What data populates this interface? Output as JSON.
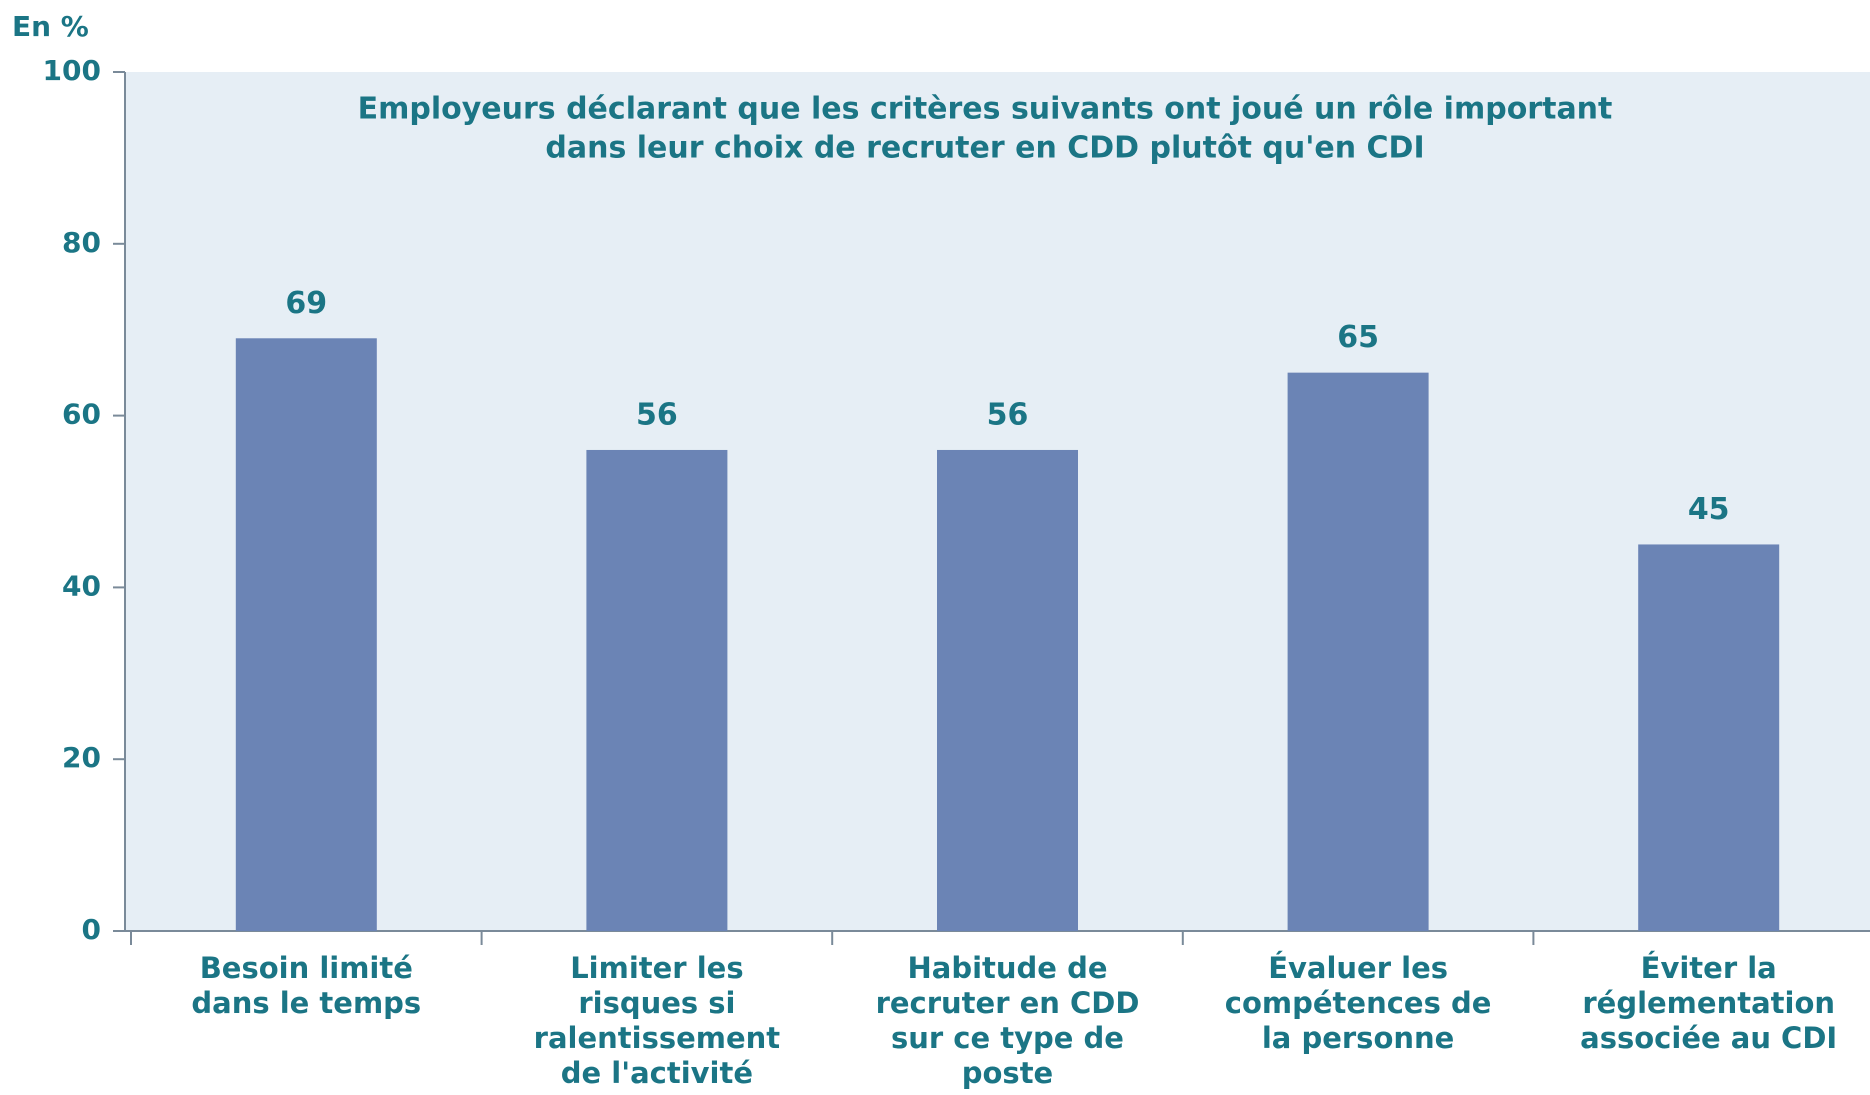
{
  "chart_data": {
    "type": "bar",
    "y_label": "En %",
    "title": [
      "Employeurs déclarant que les critères suivants ont joué un rôle important",
      "dans leur choix de recruter en CDD plutôt qu'en CDI"
    ],
    "categories": [
      [
        "Besoin limité",
        "dans le temps"
      ],
      [
        "Limiter les",
        "risques si",
        "ralentissement",
        "de l'activité"
      ],
      [
        "Habitude de",
        "recruter en CDD",
        "sur ce type de",
        "poste"
      ],
      [
        "Évaluer les",
        "compétences de",
        "la personne"
      ],
      [
        "Éviter la",
        "réglementation",
        "associée au CDI"
      ]
    ],
    "values": [
      69,
      56,
      56,
      65,
      45
    ],
    "color": "#6b84b5",
    "ylim": [
      0,
      100
    ],
    "yticks": [
      0,
      20,
      40,
      60,
      80,
      100
    ]
  }
}
